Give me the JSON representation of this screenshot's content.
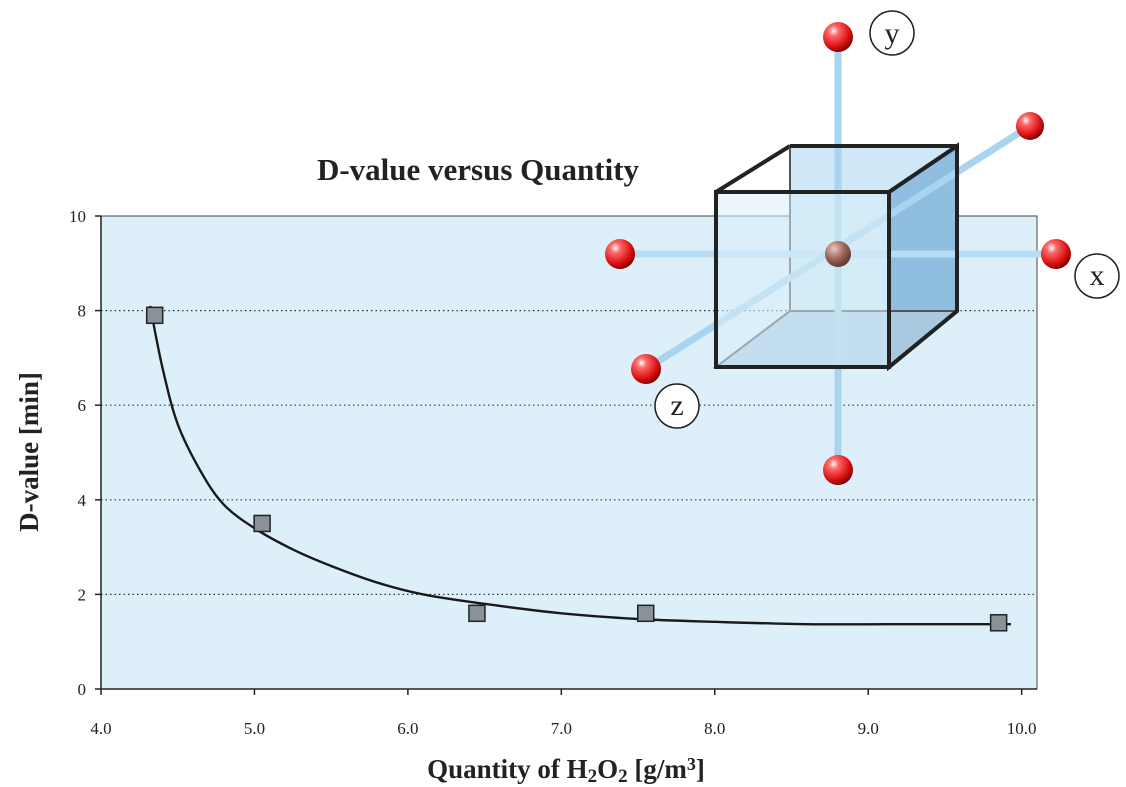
{
  "chart_data": {
    "type": "scatter",
    "title": "D-value versus Quantity",
    "xlabel": {
      "prefix": "Quantity of H",
      "sub1": "2",
      "mid": "O",
      "sub2": "2",
      "suffix": " [g/m",
      "sup": "3",
      "end": "]"
    },
    "ylabel": "D-value [min]",
    "xlim": [
      4.0,
      10.1
    ],
    "ylim": [
      0,
      10
    ],
    "x_ticks": [
      "4.0",
      "5.0",
      "6.0",
      "7.0",
      "8.0",
      "9.0",
      "10.0"
    ],
    "y_ticks": [
      "0",
      "2",
      "4",
      "6",
      "8",
      "10"
    ],
    "grid": "horizontal dotted",
    "series": [
      {
        "points": [
          {
            "x": 4.35,
            "y": 7.9
          },
          {
            "x": 5.05,
            "y": 3.5
          },
          {
            "x": 6.45,
            "y": 1.6
          },
          {
            "x": 7.55,
            "y": 1.6
          },
          {
            "x": 9.85,
            "y": 1.4
          }
        ],
        "marker": "square",
        "color": "#8a9199"
      }
    ],
    "trend_curve": [
      [
        4.32,
        8.1
      ],
      [
        4.4,
        6.8
      ],
      [
        4.5,
        5.6
      ],
      [
        4.65,
        4.6
      ],
      [
        4.8,
        3.9
      ],
      [
        5.0,
        3.4
      ],
      [
        5.25,
        2.95
      ],
      [
        5.5,
        2.6
      ],
      [
        5.8,
        2.25
      ],
      [
        6.1,
        2.0
      ],
      [
        6.5,
        1.8
      ],
      [
        7.0,
        1.6
      ],
      [
        7.5,
        1.48
      ],
      [
        8.0,
        1.42
      ],
      [
        8.6,
        1.37
      ],
      [
        9.2,
        1.37
      ],
      [
        9.93,
        1.37
      ]
    ],
    "plot_fill": "#ddf0fa"
  },
  "illustration": {
    "labels": {
      "x": "x",
      "y": "y",
      "z": "z"
    },
    "ball_color": "#e01818",
    "center_color": "#a06a60",
    "cube_front": "#d9eefa",
    "cube_side": "#8fbee0"
  }
}
